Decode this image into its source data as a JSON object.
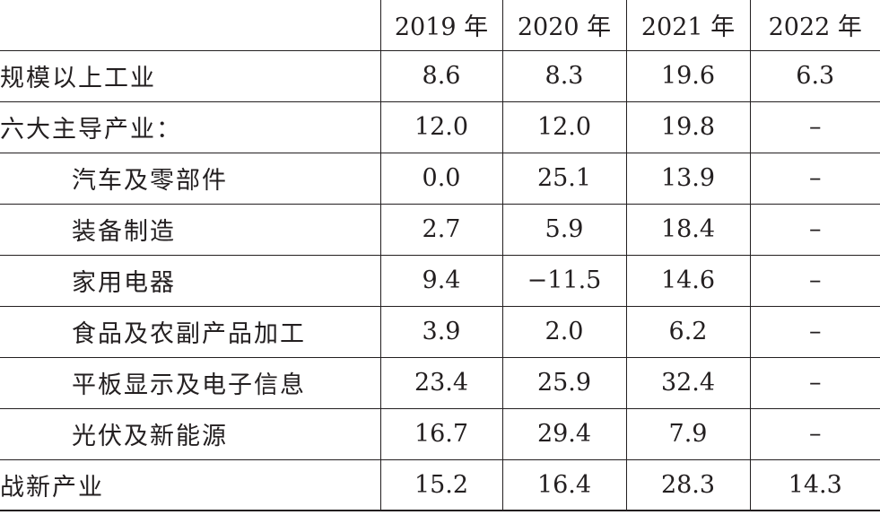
{
  "table": {
    "headers": [
      "",
      "2019 年",
      "2020 年",
      "2021 年",
      "2022 年"
    ],
    "rows": [
      {
        "label": "规模以上工业",
        "indent": false,
        "values": [
          "8.6",
          "8.3",
          "19.6",
          "6.3"
        ]
      },
      {
        "label": "六大主导产业：",
        "indent": false,
        "values": [
          "12.0",
          "12.0",
          "19.8",
          "–"
        ]
      },
      {
        "label": "汽车及零部件",
        "indent": true,
        "values": [
          "0.0",
          "25.1",
          "13.9",
          "–"
        ]
      },
      {
        "label": "装备制造",
        "indent": true,
        "values": [
          "2.7",
          "5.9",
          "18.4",
          "–"
        ]
      },
      {
        "label": "家用电器",
        "indent": true,
        "values": [
          "9.4",
          "−11.5",
          "14.6",
          "–"
        ]
      },
      {
        "label": "食品及农副产品加工",
        "indent": true,
        "values": [
          "3.9",
          "2.0",
          "6.2",
          "–"
        ]
      },
      {
        "label": "平板显示及电子信息",
        "indent": true,
        "values": [
          "23.4",
          "25.9",
          "32.4",
          "–"
        ]
      },
      {
        "label": "光伏及新能源",
        "indent": true,
        "values": [
          "16.7",
          "29.4",
          "7.9",
          "–"
        ]
      },
      {
        "label": "战新产业",
        "indent": false,
        "values": [
          "15.2",
          "16.4",
          "28.3",
          "14.3"
        ]
      }
    ]
  }
}
